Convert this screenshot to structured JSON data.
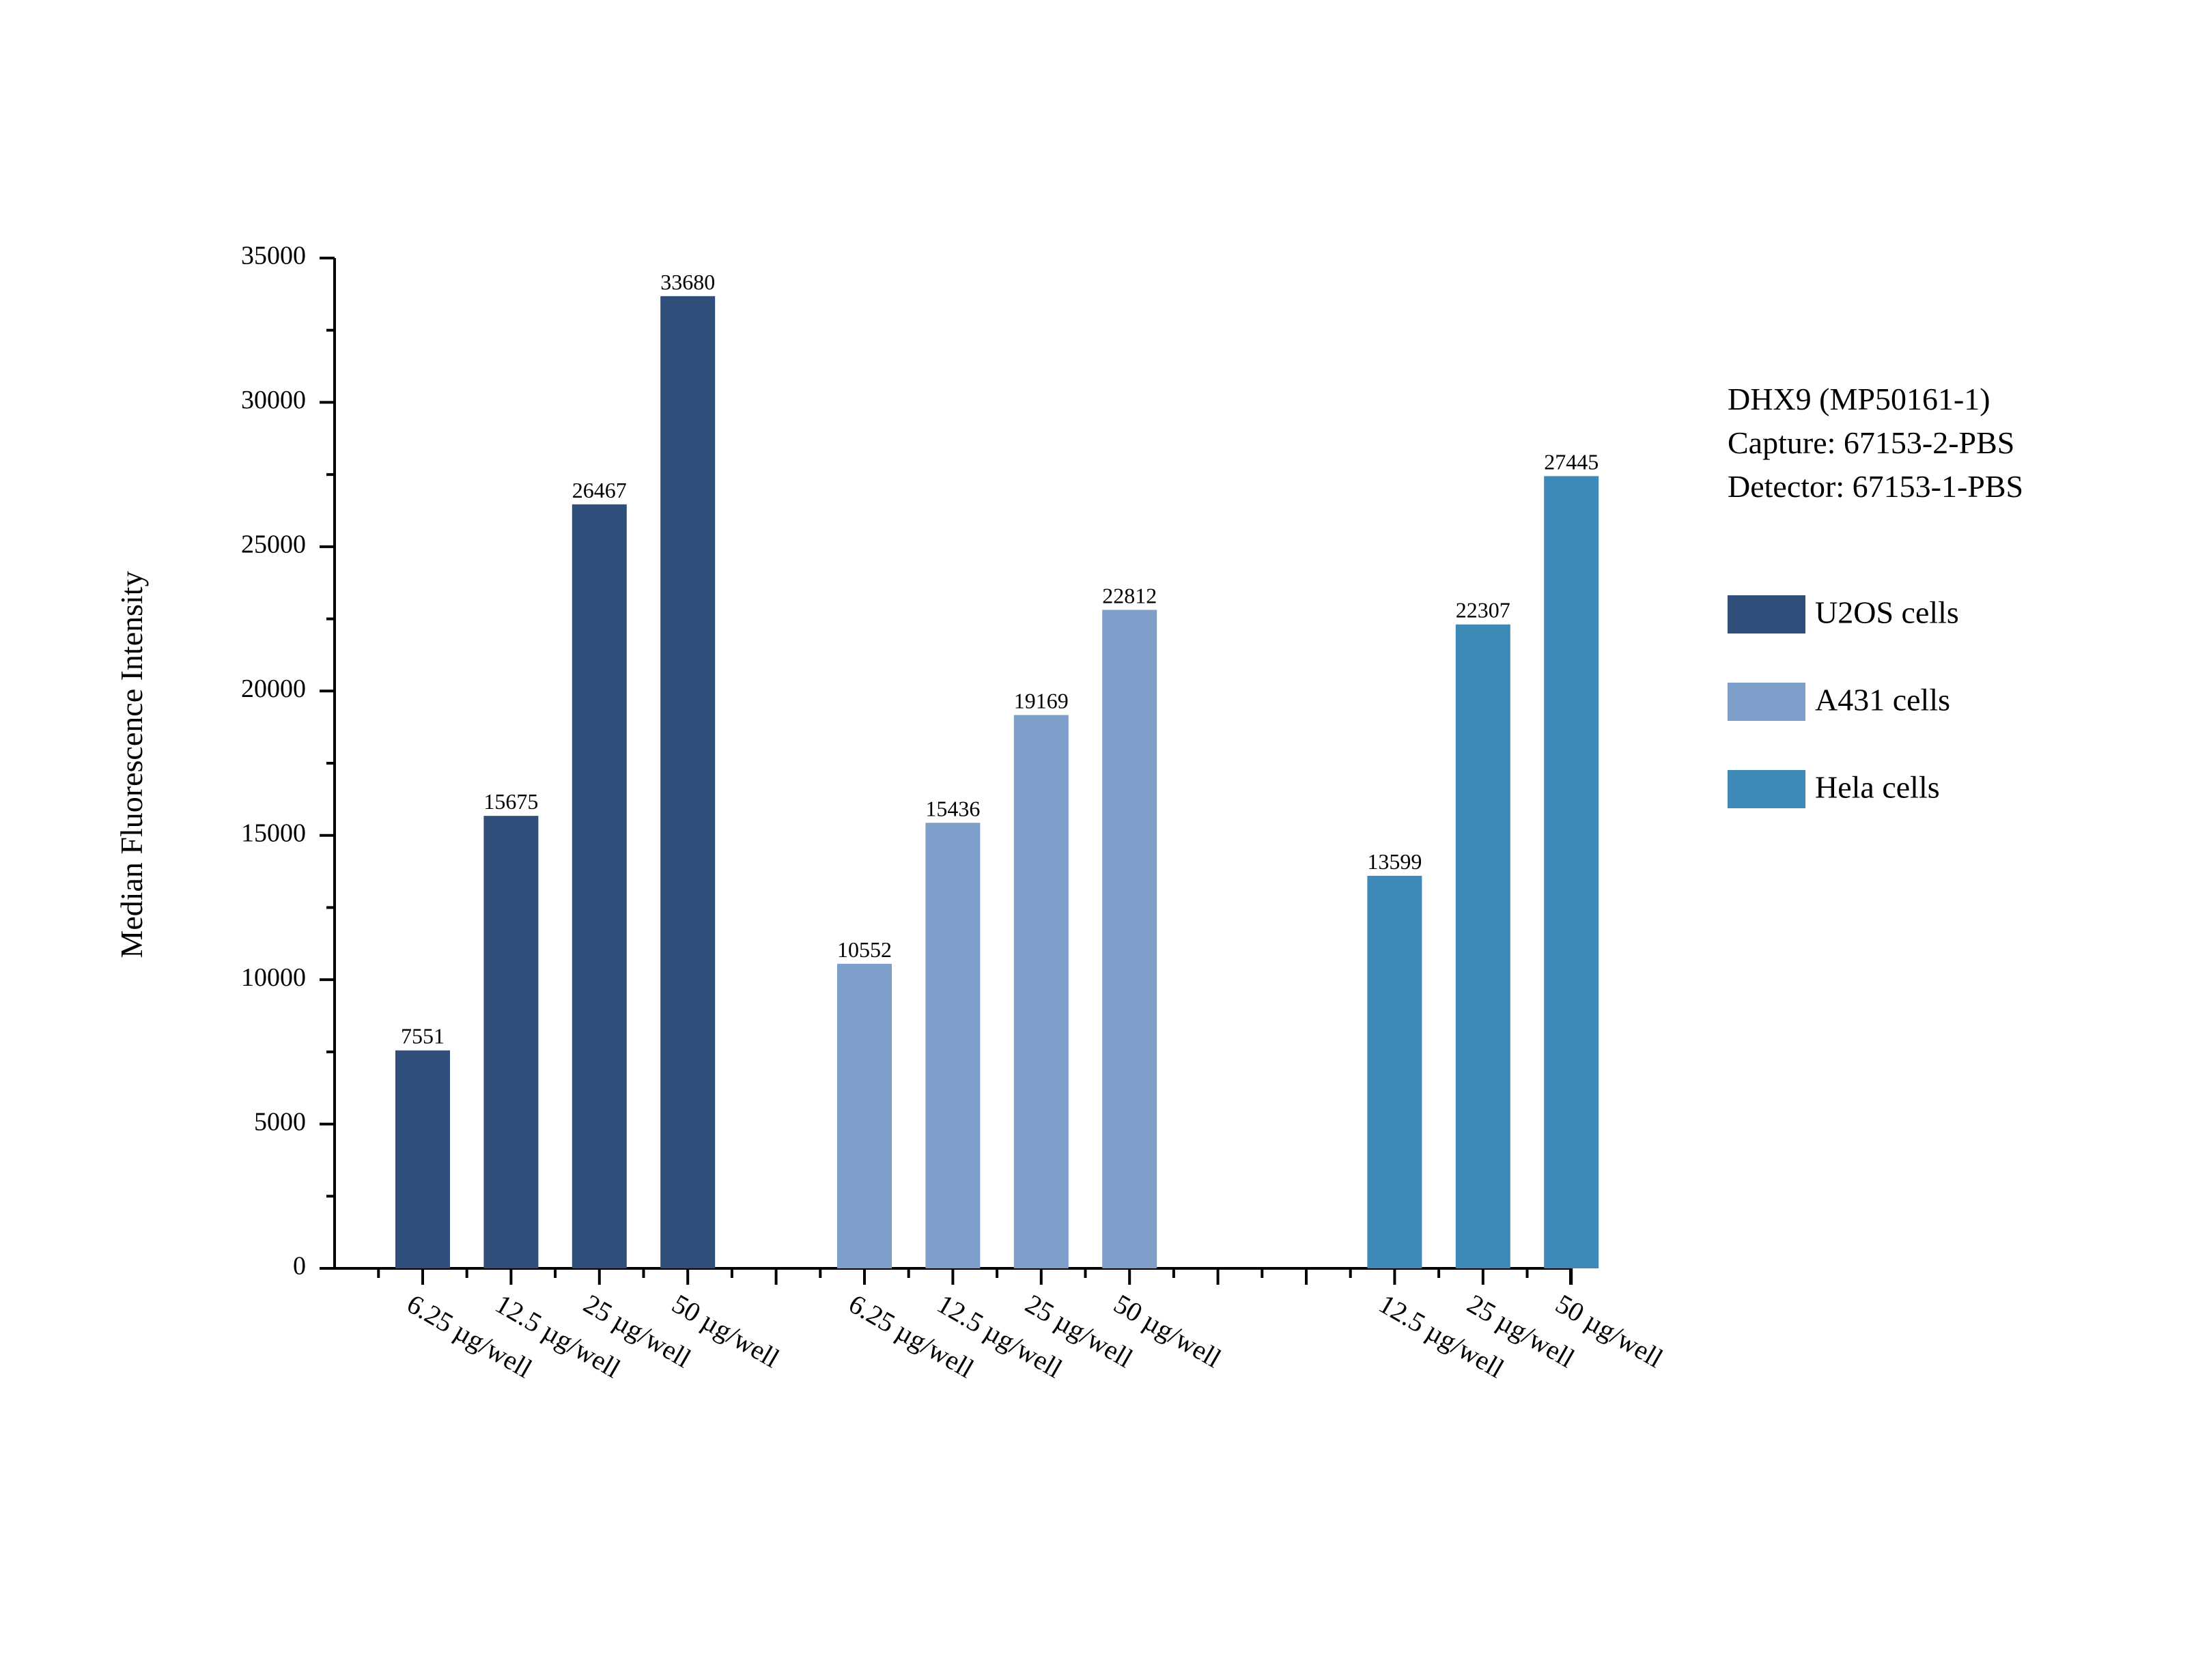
{
  "chart_data": {
    "type": "bar",
    "title": "",
    "ylabel": "Median Fluorescence Intensity",
    "xlabel": "",
    "ylim": [
      0,
      35000
    ],
    "yticks": [
      0,
      5000,
      10000,
      15000,
      20000,
      25000,
      30000,
      35000
    ],
    "grid": false,
    "legend_position": "right",
    "annotation": [
      "DHX9 (MP50161-1)",
      "Capture: 67153-2-PBS",
      "Detector: 67153-1-PBS"
    ],
    "colors": {
      "U2OS cells": "#2f4f7a",
      "A431 cells": "#7f9fcb",
      "Hela cells": "#3d8ab8"
    },
    "series": [
      {
        "name": "U2OS cells",
        "categories": [
          "6.25 µg/well",
          "12.5 µg/well",
          "25 µg/well",
          "50 µg/well"
        ],
        "values": [
          7551,
          15675,
          26467,
          33680
        ]
      },
      {
        "name": "A431 cells",
        "categories": [
          "6.25 µg/well",
          "12.5 µg/well",
          "25 µg/well",
          "50 µg/well"
        ],
        "values": [
          10552,
          15436,
          19169,
          22812
        ]
      },
      {
        "name": "Hela cells",
        "categories": [
          "12.5 µg/well",
          "25 µg/well",
          "50 µg/well"
        ],
        "values": [
          13599,
          22307,
          27445
        ]
      }
    ]
  }
}
